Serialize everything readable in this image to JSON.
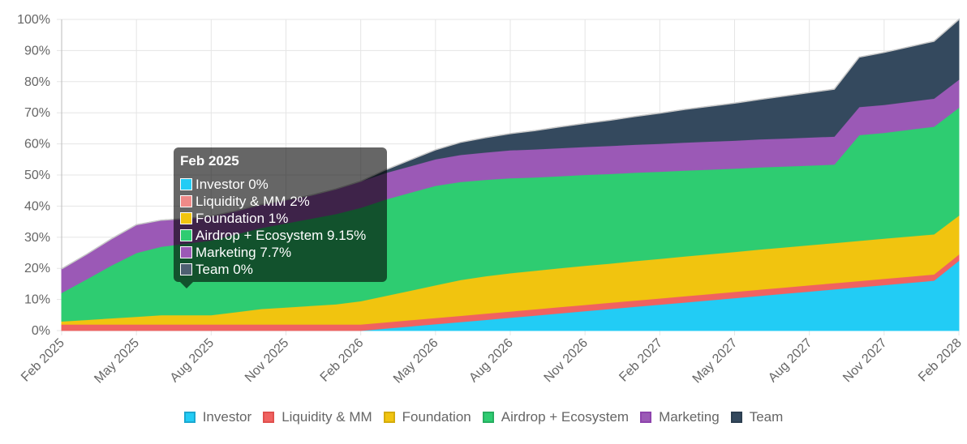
{
  "chart_data": {
    "type": "area",
    "stacked": true,
    "title": "",
    "xlabel": "",
    "ylabel": "",
    "ylim": [
      0,
      100
    ],
    "y_ticks": [
      "0%",
      "10%",
      "20%",
      "30%",
      "40%",
      "50%",
      "60%",
      "70%",
      "80%",
      "90%",
      "100%"
    ],
    "categories": [
      "Feb 2025",
      "May 2025",
      "Aug 2025",
      "Nov 2025",
      "Feb 2026",
      "May 2026",
      "Aug 2026",
      "Nov 2026",
      "Feb 2027",
      "May 2027",
      "Aug 2027",
      "Nov 2027",
      "Feb 2028"
    ],
    "x": [
      "Feb 2025",
      "Mar 2025",
      "Apr 2025",
      "May 2025",
      "Jun 2025",
      "Jul 2025",
      "Aug 2025",
      "Sep 2025",
      "Oct 2025",
      "Nov 2025",
      "Dec 2025",
      "Jan 2026",
      "Feb 2026",
      "Mar 2026",
      "Apr 2026",
      "May 2026",
      "Jun 2026",
      "Jul 2026",
      "Aug 2026",
      "Sep 2026",
      "Oct 2026",
      "Nov 2026",
      "Dec 2026",
      "Jan 2027",
      "Feb 2027",
      "Mar 2027",
      "Apr 2027",
      "May 2027",
      "Jun 2027",
      "Jul 2027",
      "Aug 2027",
      "Sep 2027",
      "Oct 2027",
      "Nov 2027",
      "Dec 2027",
      "Jan 2028",
      "Feb 2028"
    ],
    "series": [
      {
        "name": "Investor",
        "color": "#36A2EB",
        "fill": "#22CCF5",
        "values": [
          0,
          0,
          0,
          0,
          0,
          0,
          0,
          0,
          0,
          0,
          0,
          0,
          0,
          0.7,
          1.4,
          2.1,
          2.8,
          3.5,
          4.2,
          4.9,
          5.6,
          6.3,
          7.0,
          7.7,
          8.4,
          9.1,
          9.8,
          10.5,
          11.2,
          11.9,
          12.6,
          13.3,
          14.0,
          14.7,
          15.4,
          16.1,
          22.5
        ]
      },
      {
        "name": "Liquidity & MM",
        "color": "#FF6384",
        "fill": "#F06260",
        "values": [
          2,
          2,
          2,
          2,
          2,
          2,
          2,
          2,
          2,
          2,
          2,
          2,
          2,
          2,
          2,
          2,
          2,
          2,
          2,
          2,
          2,
          2,
          2,
          2,
          2,
          2,
          2,
          2,
          2,
          2,
          2,
          2,
          2,
          2,
          2,
          2,
          2
        ]
      },
      {
        "name": "Foundation",
        "color": "#F1C40F",
        "fill": "#F1C40F",
        "values": [
          1,
          1.5,
          2,
          2.5,
          3,
          3,
          3,
          4,
          5,
          5.5,
          6,
          6.5,
          7.5,
          8.5,
          9.5,
          10.5,
          11.5,
          12,
          12.3,
          12.4,
          12.5,
          12.6,
          12.6,
          12.7,
          12.7,
          12.8,
          12.8,
          12.8,
          12.9,
          12.9,
          12.9,
          12.9,
          12.9,
          12.9,
          12.9,
          12.9,
          12.5
        ]
      },
      {
        "name": "Airdrop + Ecosystem",
        "color": "#2ECC71",
        "fill": "#2ECC71",
        "values": [
          9.15,
          13,
          17,
          20.5,
          22,
          23,
          24,
          25,
          26,
          27,
          28,
          29,
          30,
          31,
          31.5,
          32,
          31.5,
          31,
          30.5,
          30,
          29.6,
          29.2,
          28.8,
          28.4,
          28.0,
          27.6,
          27.2,
          26.8,
          26.4,
          26.0,
          25.6,
          25.2,
          34.0,
          34.0,
          34.3,
          34.6,
          34.7
        ]
      },
      {
        "name": "Marketing",
        "color": "#8E44AD",
        "fill": "#9B59B6",
        "values": [
          7.7,
          8,
          8.5,
          9,
          8.5,
          8,
          7.8,
          7.5,
          7.5,
          7.5,
          7.5,
          8,
          8.5,
          8.5,
          8.5,
          8.5,
          8.7,
          8.8,
          9,
          9,
          9,
          9,
          9,
          9,
          9,
          9,
          9,
          9,
          9,
          9,
          9,
          9,
          9,
          9,
          9,
          9,
          9
        ]
      },
      {
        "name": "Team",
        "color": "#2C3E50",
        "fill": "#34495E",
        "values": [
          0,
          0,
          0,
          0,
          0,
          0,
          0,
          0,
          0,
          0,
          0,
          0,
          0,
          1,
          2,
          3,
          4,
          4.7,
          5.3,
          6,
          6.8,
          7.5,
          8.2,
          9,
          9.8,
          10.6,
          11.3,
          12,
          12.8,
          13.6,
          14.4,
          15.2,
          16,
          16.8,
          17.6,
          18.4,
          19.3
        ]
      }
    ],
    "legend_position": "bottom",
    "grid": true
  },
  "tooltip": {
    "title": "Feb 2025",
    "rows": [
      {
        "label": "Investor 0%",
        "color": "#22CCF5"
      },
      {
        "label": "Liquidity & MM 2%",
        "color": "#F06260"
      },
      {
        "label": "Foundation 1%",
        "color": "#F1C40F"
      },
      {
        "label": "Airdrop + Ecosystem 9.15%",
        "color": "#2ECC71"
      },
      {
        "label": "Marketing 7.7%",
        "color": "#9B59B6"
      },
      {
        "label": "Team 0%",
        "color": "#34495E"
      }
    ]
  },
  "legend": {
    "items": [
      {
        "label": "Investor",
        "color": "#22CCF5",
        "border": "#1BA8D0"
      },
      {
        "label": "Liquidity & MM",
        "color": "#F06260",
        "border": "#E0504E"
      },
      {
        "label": "Foundation",
        "color": "#F1C40F",
        "border": "#D4AC0D"
      },
      {
        "label": "Airdrop + Ecosystem",
        "color": "#2ECC71",
        "border": "#27AE60"
      },
      {
        "label": "Marketing",
        "color": "#9B59B6",
        "border": "#8E44AD"
      },
      {
        "label": "Team",
        "color": "#34495E",
        "border": "#2C3E50"
      }
    ]
  }
}
